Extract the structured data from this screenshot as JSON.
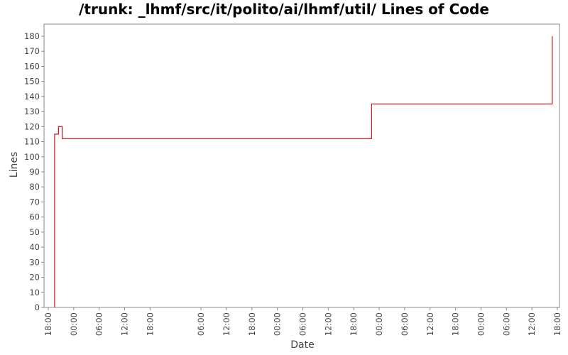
{
  "chart_data": {
    "type": "line",
    "title": "/trunk: _lhmf/src/it/polito/ai/lhmf/util/ Lines of Code",
    "xlabel": "Date",
    "ylabel": "Lines",
    "ylim": [
      0,
      188
    ],
    "xlim": [
      "17:00",
      "+4d 18:30"
    ],
    "yticks": [
      0,
      10,
      20,
      30,
      40,
      50,
      60,
      70,
      80,
      90,
      100,
      110,
      120,
      130,
      140,
      150,
      160,
      170,
      180
    ],
    "xticks": [
      "18:00",
      "00:00",
      "06:00",
      "12:00",
      "18:00",
      "06:00",
      "12:00",
      "18:00",
      "00:00",
      "06:00",
      "12:00",
      "18:00",
      "00:00",
      "06:00",
      "12:00",
      "18:00",
      "00:00",
      "06:00",
      "12:00",
      "18:00"
    ],
    "xtick_hours": [
      18,
      24,
      30,
      36,
      42,
      54,
      60,
      66,
      72,
      78,
      84,
      90,
      96,
      102,
      108,
      114,
      120,
      126,
      132,
      138
    ],
    "grid": false,
    "series": [
      {
        "step": "post",
        "color": "#bb0000",
        "x_hours": [
          19.4,
          19.5,
          20.4,
          21.3,
          94.2,
          136.8,
          136.8
        ],
        "values": [
          0,
          115,
          120,
          112,
          135,
          135,
          180
        ]
      }
    ]
  }
}
